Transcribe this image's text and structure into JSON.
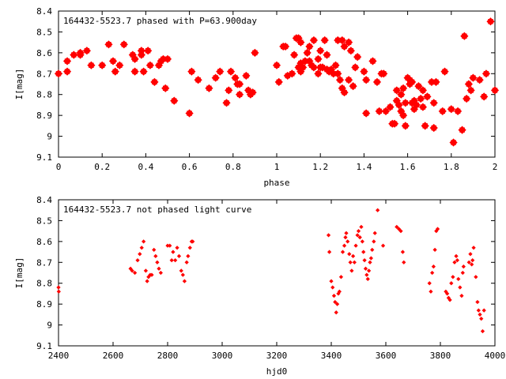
{
  "chart_data": [
    {
      "type": "scatter",
      "title": "164432-5523.7 phased with P=63.900day",
      "xlabel": "phase",
      "ylabel": "I[mag]",
      "xlim": [
        0,
        2
      ],
      "ylim": [
        9.1,
        8.4
      ],
      "y_inverted": true,
      "grid": false,
      "marker_color": "#ff0000",
      "marker": "filled-star",
      "x_ticks": [
        "0",
        "0.2",
        "0.4",
        "0.6",
        "0.8",
        "1",
        "1.2",
        "1.4",
        "1.6",
        "1.8",
        "2"
      ],
      "y_ticks": [
        "8.4",
        "8.5",
        "8.6",
        "8.7",
        "8.8",
        "8.9",
        "9",
        "9.1"
      ],
      "points": [
        [
          0.0,
          8.7
        ],
        [
          0.04,
          8.69
        ],
        [
          0.04,
          8.64
        ],
        [
          0.07,
          8.61
        ],
        [
          0.1,
          8.6
        ],
        [
          0.1,
          8.61
        ],
        [
          0.13,
          8.59
        ],
        [
          0.15,
          8.66
        ],
        [
          0.2,
          8.66
        ],
        [
          0.23,
          8.56
        ],
        [
          0.25,
          8.64
        ],
        [
          0.26,
          8.69
        ],
        [
          0.28,
          8.66
        ],
        [
          0.3,
          8.56
        ],
        [
          0.34,
          8.61
        ],
        [
          0.35,
          8.63
        ],
        [
          0.35,
          8.69
        ],
        [
          0.38,
          8.61
        ],
        [
          0.38,
          8.59
        ],
        [
          0.39,
          8.69
        ],
        [
          0.41,
          8.59
        ],
        [
          0.42,
          8.66
        ],
        [
          0.44,
          8.74
        ],
        [
          0.46,
          8.66
        ],
        [
          0.47,
          8.64
        ],
        [
          0.48,
          8.63
        ],
        [
          0.49,
          8.77
        ],
        [
          0.5,
          8.63
        ],
        [
          0.53,
          8.83
        ],
        [
          0.6,
          8.89
        ],
        [
          0.61,
          8.69
        ],
        [
          0.64,
          8.73
        ],
        [
          0.69,
          8.77
        ],
        [
          0.72,
          8.72
        ],
        [
          0.74,
          8.69
        ],
        [
          0.77,
          8.84
        ],
        [
          0.78,
          8.78
        ],
        [
          0.79,
          8.69
        ],
        [
          0.81,
          8.72
        ],
        [
          0.82,
          8.75
        ],
        [
          0.83,
          8.75
        ],
        [
          0.83,
          8.8
        ],
        [
          0.86,
          8.71
        ],
        [
          0.87,
          8.78
        ],
        [
          0.88,
          8.8
        ],
        [
          0.89,
          8.79
        ],
        [
          0.9,
          8.6
        ],
        [
          1.0,
          8.66
        ],
        [
          1.01,
          8.74
        ],
        [
          1.03,
          8.57
        ],
        [
          1.04,
          8.57
        ],
        [
          1.05,
          8.71
        ],
        [
          1.07,
          8.7
        ],
        [
          1.08,
          8.61
        ],
        [
          1.09,
          8.53
        ],
        [
          1.1,
          8.53
        ],
        [
          1.1,
          8.67
        ],
        [
          1.11,
          8.55
        ],
        [
          1.11,
          8.65
        ],
        [
          1.11,
          8.69
        ],
        [
          1.12,
          8.67
        ],
        [
          1.13,
          8.64
        ],
        [
          1.14,
          8.6
        ],
        [
          1.15,
          8.57
        ],
        [
          1.15,
          8.64
        ],
        [
          1.16,
          8.66
        ],
        [
          1.17,
          8.54
        ],
        [
          1.17,
          8.67
        ],
        [
          1.19,
          8.7
        ],
        [
          1.19,
          8.63
        ],
        [
          1.2,
          8.67
        ],
        [
          1.2,
          8.59
        ],
        [
          1.21,
          8.67
        ],
        [
          1.22,
          8.54
        ],
        [
          1.23,
          8.68
        ],
        [
          1.23,
          8.61
        ],
        [
          1.24,
          8.69
        ],
        [
          1.25,
          8.68
        ],
        [
          1.26,
          8.7
        ],
        [
          1.27,
          8.66
        ],
        [
          1.28,
          8.54
        ],
        [
          1.28,
          8.7
        ],
        [
          1.29,
          8.73
        ],
        [
          1.3,
          8.77
        ],
        [
          1.3,
          8.54
        ],
        [
          1.31,
          8.57
        ],
        [
          1.31,
          8.79
        ],
        [
          1.33,
          8.73
        ],
        [
          1.33,
          8.55
        ],
        [
          1.34,
          8.59
        ],
        [
          1.35,
          8.76
        ],
        [
          1.36,
          8.67
        ],
        [
          1.37,
          8.62
        ],
        [
          1.4,
          8.69
        ],
        [
          1.41,
          8.73
        ],
        [
          1.41,
          8.89
        ],
        [
          1.44,
          8.64
        ],
        [
          1.46,
          8.74
        ],
        [
          1.47,
          8.88
        ],
        [
          1.48,
          8.7
        ],
        [
          1.49,
          8.7
        ],
        [
          1.5,
          8.88
        ],
        [
          1.52,
          8.86
        ],
        [
          1.53,
          8.94
        ],
        [
          1.54,
          8.94
        ],
        [
          1.55,
          8.78
        ],
        [
          1.55,
          8.83
        ],
        [
          1.56,
          8.85
        ],
        [
          1.57,
          8.8
        ],
        [
          1.57,
          8.88
        ],
        [
          1.58,
          8.77
        ],
        [
          1.58,
          8.9
        ],
        [
          1.59,
          8.84
        ],
        [
          1.59,
          8.95
        ],
        [
          1.6,
          8.72
        ],
        [
          1.61,
          8.73
        ],
        [
          1.61,
          8.75
        ],
        [
          1.62,
          8.74
        ],
        [
          1.62,
          8.84
        ],
        [
          1.63,
          8.87
        ],
        [
          1.63,
          8.83
        ],
        [
          1.64,
          8.85
        ],
        [
          1.65,
          8.76
        ],
        [
          1.66,
          8.82
        ],
        [
          1.67,
          8.78
        ],
        [
          1.67,
          8.86
        ],
        [
          1.68,
          8.95
        ],
        [
          1.69,
          8.81
        ],
        [
          1.71,
          8.74
        ],
        [
          1.72,
          8.84
        ],
        [
          1.72,
          8.96
        ],
        [
          1.73,
          8.74
        ],
        [
          1.76,
          8.88
        ],
        [
          1.77,
          8.69
        ],
        [
          1.8,
          8.87
        ],
        [
          1.81,
          9.03
        ],
        [
          1.83,
          8.88
        ],
        [
          1.85,
          8.97
        ],
        [
          1.86,
          8.52
        ],
        [
          1.87,
          8.82
        ],
        [
          1.88,
          8.75
        ],
        [
          1.89,
          8.78
        ],
        [
          1.9,
          8.72
        ],
        [
          1.93,
          8.73
        ],
        [
          1.95,
          8.81
        ],
        [
          1.96,
          8.7
        ],
        [
          1.98,
          8.45
        ],
        [
          2.0,
          8.78
        ]
      ]
    },
    {
      "type": "scatter",
      "title": "164432-5523.7 not phased light curve",
      "xlabel": "hjd0",
      "ylabel": "I[mag]",
      "xlim": [
        2400,
        4000
      ],
      "ylim": [
        9.1,
        8.4
      ],
      "y_inverted": true,
      "grid": false,
      "marker_color": "#ff0000",
      "marker": "small-diamond",
      "x_ticks": [
        "2400",
        "2600",
        "2800",
        "3000",
        "3200",
        "3400",
        "3600",
        "3800",
        "4000"
      ],
      "y_ticks": [
        "8.4",
        "8.5",
        "8.6",
        "8.7",
        "8.8",
        "8.9",
        "9",
        "9.1"
      ],
      "points": [
        [
          2400,
          8.82
        ],
        [
          2401,
          8.84
        ],
        [
          2664,
          8.73
        ],
        [
          2670,
          8.74
        ],
        [
          2680,
          8.75
        ],
        [
          2690,
          8.69
        ],
        [
          2698,
          8.66
        ],
        [
          2705,
          8.63
        ],
        [
          2712,
          8.6
        ],
        [
          2720,
          8.74
        ],
        [
          2725,
          8.79
        ],
        [
          2730,
          8.77
        ],
        [
          2736,
          8.76
        ],
        [
          2742,
          8.76
        ],
        [
          2750,
          8.64
        ],
        [
          2756,
          8.67
        ],
        [
          2762,
          8.7
        ],
        [
          2768,
          8.73
        ],
        [
          2775,
          8.75
        ],
        [
          2800,
          8.62
        ],
        [
          2808,
          8.62
        ],
        [
          2815,
          8.69
        ],
        [
          2820,
          8.65
        ],
        [
          2828,
          8.69
        ],
        [
          2835,
          8.63
        ],
        [
          2842,
          8.67
        ],
        [
          2850,
          8.74
        ],
        [
          2856,
          8.76
        ],
        [
          2862,
          8.79
        ],
        [
          2870,
          8.7
        ],
        [
          2875,
          8.67
        ],
        [
          2882,
          8.63
        ],
        [
          2888,
          8.6
        ],
        [
          2892,
          8.6
        ],
        [
          3390,
          8.57
        ],
        [
          3393,
          8.65
        ],
        [
          3400,
          8.79
        ],
        [
          3405,
          8.82
        ],
        [
          3410,
          8.86
        ],
        [
          3414,
          8.89
        ],
        [
          3418,
          8.94
        ],
        [
          3422,
          8.9
        ],
        [
          3426,
          8.85
        ],
        [
          3430,
          8.84
        ],
        [
          3436,
          8.77
        ],
        [
          3442,
          8.65
        ],
        [
          3448,
          8.62
        ],
        [
          3452,
          8.58
        ],
        [
          3455,
          8.56
        ],
        [
          3460,
          8.6
        ],
        [
          3466,
          8.66
        ],
        [
          3470,
          8.7
        ],
        [
          3475,
          8.74
        ],
        [
          3480,
          8.67
        ],
        [
          3485,
          8.7
        ],
        [
          3490,
          8.62
        ],
        [
          3496,
          8.57
        ],
        [
          3500,
          8.55
        ],
        [
          3505,
          8.58
        ],
        [
          3510,
          8.53
        ],
        [
          3514,
          8.6
        ],
        [
          3518,
          8.65
        ],
        [
          3522,
          8.69
        ],
        [
          3526,
          8.73
        ],
        [
          3530,
          8.76
        ],
        [
          3534,
          8.78
        ],
        [
          3538,
          8.74
        ],
        [
          3542,
          8.7
        ],
        [
          3546,
          8.68
        ],
        [
          3550,
          8.64
        ],
        [
          3556,
          8.6
        ],
        [
          3560,
          8.56
        ],
        [
          3570,
          8.45
        ],
        [
          3590,
          8.62
        ],
        [
          3640,
          8.53
        ],
        [
          3648,
          8.54
        ],
        [
          3655,
          8.55
        ],
        [
          3662,
          8.65
        ],
        [
          3666,
          8.7
        ],
        [
          3760,
          8.8
        ],
        [
          3765,
          8.84
        ],
        [
          3770,
          8.75
        ],
        [
          3775,
          8.72
        ],
        [
          3780,
          8.64
        ],
        [
          3785,
          8.55
        ],
        [
          3790,
          8.54
        ],
        [
          3820,
          8.84
        ],
        [
          3825,
          8.85
        ],
        [
          3830,
          8.87
        ],
        [
          3835,
          8.88
        ],
        [
          3840,
          8.8
        ],
        [
          3846,
          8.77
        ],
        [
          3852,
          8.7
        ],
        [
          3858,
          8.67
        ],
        [
          3862,
          8.69
        ],
        [
          3866,
          8.78
        ],
        [
          3872,
          8.82
        ],
        [
          3878,
          8.86
        ],
        [
          3882,
          8.75
        ],
        [
          3885,
          8.72
        ],
        [
          3905,
          8.7
        ],
        [
          3910,
          8.66
        ],
        [
          3915,
          8.71
        ],
        [
          3918,
          8.69
        ],
        [
          3922,
          8.63
        ],
        [
          3930,
          8.77
        ],
        [
          3936,
          8.89
        ],
        [
          3940,
          8.93
        ],
        [
          3945,
          8.95
        ],
        [
          3950,
          8.97
        ],
        [
          3955,
          9.03
        ],
        [
          3960,
          8.93
        ]
      ]
    }
  ]
}
